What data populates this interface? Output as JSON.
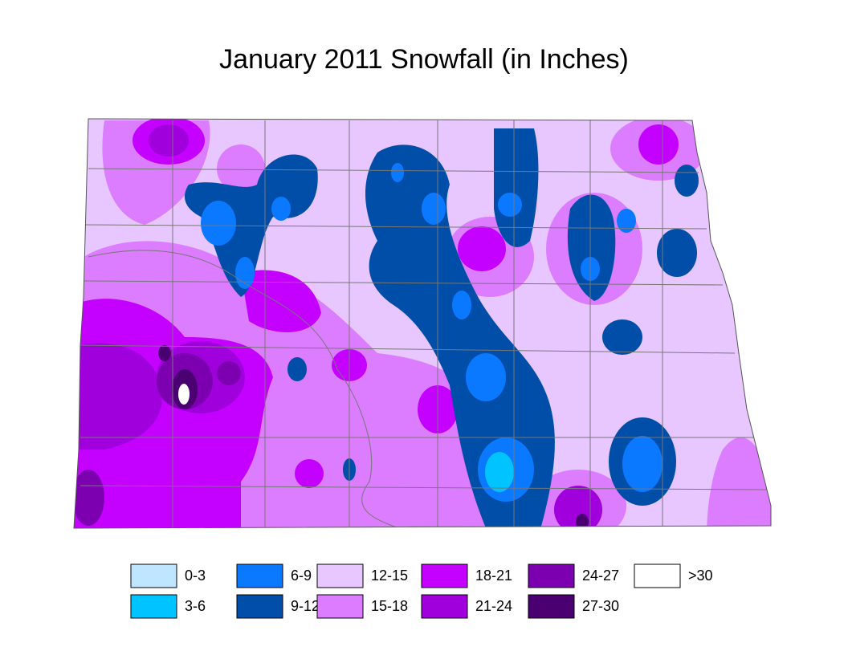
{
  "title": "January 2011 Snowfall (in Inches)",
  "legend": [
    {
      "label": "0-3",
      "color": "#c0e6ff"
    },
    {
      "label": "3-6",
      "color": "#00c3ff"
    },
    {
      "label": "6-9",
      "color": "#0a78ff"
    },
    {
      "label": "9-12",
      "color": "#004ea8"
    },
    {
      "label": "12-15",
      "color": "#e8c6ff"
    },
    {
      "label": "15-18",
      "color": "#dc7cff"
    },
    {
      "label": "18-21",
      "color": "#c400ff"
    },
    {
      "label": "21-24",
      "color": "#a000dc"
    },
    {
      "label": "24-27",
      "color": "#7c00b0"
    },
    {
      "label": "27-30",
      "color": "#4a0070"
    },
    {
      "label": ">30",
      "color": "#ffffff"
    }
  ]
}
